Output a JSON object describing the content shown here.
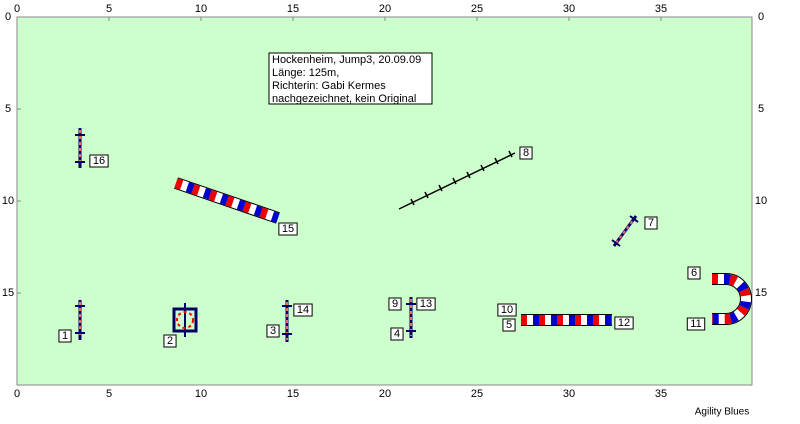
{
  "axis": {
    "x_labels": [
      0,
      5,
      10,
      15,
      20,
      25,
      30,
      35
    ],
    "y_labels": [
      0,
      5,
      10,
      15
    ]
  },
  "info": {
    "lines": [
      "Hockenheim, Jump3, 20.09.09",
      "Länge: 125m,",
      "Richterin: Gabi Kermes",
      "nachgezeichnet, kein Original"
    ]
  },
  "numbers": [
    "1",
    "2",
    "3",
    "4",
    "5",
    "6",
    "7",
    "8",
    "9",
    "10",
    "11",
    "12",
    "13",
    "14",
    "15",
    "16"
  ],
  "footer": "Agility Blues"
}
